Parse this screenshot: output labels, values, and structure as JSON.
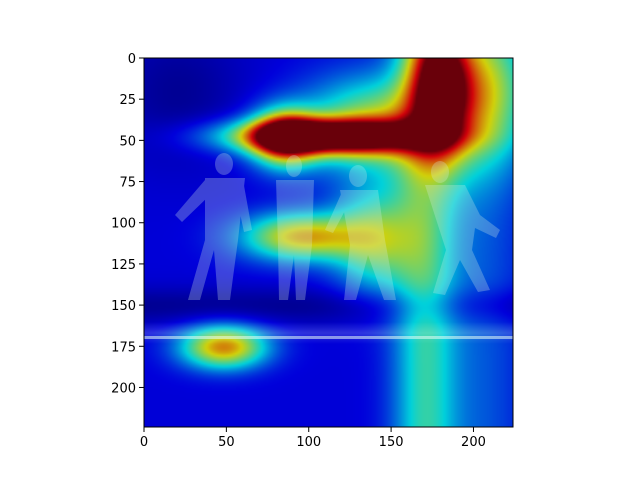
{
  "chart_data": {
    "type": "heatmap",
    "title": "",
    "xlabel": "",
    "ylabel": "",
    "xlim": [
      0,
      224
    ],
    "ylim": [
      224,
      0
    ],
    "x_ticks": [
      0,
      50,
      100,
      150,
      200
    ],
    "y_ticks": [
      0,
      25,
      50,
      75,
      100,
      125,
      150,
      175,
      200
    ],
    "colormap": "jet",
    "overlay": "attention heatmap over grayscale photo of four dancers on stage",
    "hotspots": [
      {
        "x": 112,
        "y": 47,
        "sx": 40,
        "sy": 7,
        "value": 1.0
      },
      {
        "x": 85,
        "y": 48,
        "sx": 14,
        "sy": 12,
        "value": 0.7
      },
      {
        "x": 180,
        "y": 15,
        "sx": 12,
        "sy": 28,
        "value": 0.7
      },
      {
        "x": 140,
        "y": 40,
        "sx": 30,
        "sy": 20,
        "value": 0.45
      },
      {
        "x": 95,
        "y": 108,
        "sx": 25,
        "sy": 10,
        "value": 0.55
      },
      {
        "x": 48,
        "y": 175,
        "sx": 18,
        "sy": 9,
        "value": 0.6
      },
      {
        "x": 140,
        "y": 110,
        "sx": 18,
        "sy": 22,
        "value": 0.38
      },
      {
        "x": 205,
        "y": 20,
        "sx": 20,
        "sy": 30,
        "value": 0.4
      }
    ]
  }
}
